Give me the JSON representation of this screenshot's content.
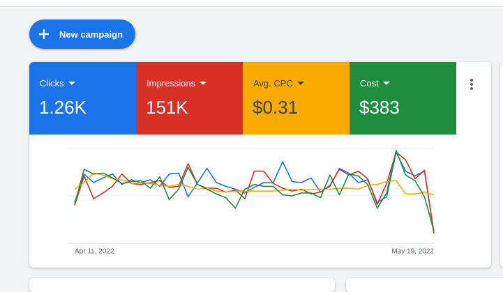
{
  "button": "New campaign",
  "scorecards": [
    {
      "value": "1.26K"
    },
    {
      "value": "151K"
    },
    {
      "value": "$0.31"
    },
    {
      "value": "$383"
    }
  ],
  "chart_data": {
    "type": "line",
    "categories": [
      "Apr 11, 2022",
      null,
      null,
      null,
      null,
      null,
      null,
      null,
      null,
      null,
      null,
      null,
      null,
      null,
      null,
      null,
      null,
      null,
      null,
      null,
      null,
      null,
      null,
      null,
      null,
      null,
      null,
      null,
      null,
      null,
      null,
      null,
      null,
      null,
      null,
      null,
      null,
      null,
      "May 19, 2022"
    ],
    "ylim": [
      0,
      100
    ],
    "series": [
      {
        "name": "Clicks",
        "color": "#1a73e8",
        "values": [
          43,
          73,
          64,
          69,
          73,
          62,
          67,
          64,
          67,
          60,
          73,
          74,
          49,
          64,
          79,
          64,
          60,
          57,
          53,
          59,
          64,
          64,
          86,
          65,
          64,
          69,
          54,
          60,
          79,
          74,
          64,
          67,
          43,
          49,
          96,
          76,
          71,
          76,
          12
        ]
      },
      {
        "name": "Impressions",
        "color": "#d93025",
        "values": [
          40,
          71,
          47,
          53,
          60,
          73,
          63,
          62,
          64,
          66,
          59,
          60,
          84,
          62,
          58,
          58,
          54,
          56,
          47,
          76,
          76,
          63,
          58,
          55,
          57,
          52,
          54,
          61,
          78,
          72,
          76,
          68,
          41,
          63,
          96,
          88,
          68,
          77,
          10
        ]
      },
      {
        "name": "Avg. CPC",
        "color": "#f9ab00",
        "values": [
          57,
          64,
          74,
          72,
          68,
          67,
          63,
          64,
          63,
          61,
          60,
          62,
          60,
          57,
          58,
          55,
          54,
          55,
          55,
          55,
          55,
          55,
          56,
          57,
          56,
          57,
          57,
          57,
          58,
          58,
          57,
          61,
          62,
          65,
          66,
          52,
          52,
          54,
          51
        ]
      },
      {
        "name": "Cost",
        "color": "#1e8e3e",
        "values": [
          41,
          78,
          73,
          74,
          69,
          63,
          65,
          66,
          58,
          70,
          46,
          57,
          80,
          62,
          57,
          52,
          48,
          37,
          57,
          62,
          60,
          60,
          51,
          50,
          53,
          53,
          48,
          72,
          51,
          73,
          71,
          62,
          37,
          53,
          98,
          72,
          66,
          49,
          13
        ]
      }
    ]
  }
}
